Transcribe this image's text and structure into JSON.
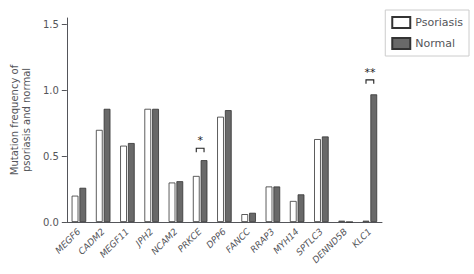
{
  "chart_data": {
    "type": "bar",
    "categories": [
      "MEGF6",
      "CADM2",
      "MEGF11",
      "JPH2",
      "NCAM2",
      "PRKCE",
      "DPP6",
      "FANCC",
      "RRAP3",
      "MYH14",
      "SPTLC3",
      "DENND5B",
      "KLC1"
    ],
    "series": [
      {
        "name": "Psoriasis",
        "color": "#ffffff",
        "values": [
          0.2,
          0.7,
          0.58,
          0.86,
          0.3,
          0.35,
          0.8,
          0.06,
          0.27,
          0.16,
          0.63,
          0.01,
          0.01
        ]
      },
      {
        "name": "Normal",
        "color": "#696969",
        "values": [
          0.26,
          0.86,
          0.6,
          0.86,
          0.31,
          0.47,
          0.85,
          0.07,
          0.27,
          0.21,
          0.65,
          0.0,
          0.97
        ]
      }
    ],
    "ylabel": "Mutation frequency of\npsoriasis and normal",
    "ylim": [
      0,
      1.55
    ],
    "yticks": [
      {
        "value": 0.0,
        "label": "0.0"
      },
      0.5,
      {
        "value": 1.0,
        "label": "1.0"
      },
      1.5
    ],
    "annotations": [
      {
        "category": "PRKCE",
        "text": "*",
        "y": 0.56
      },
      {
        "category": "KLC1",
        "text": "**",
        "y": 1.08
      }
    ],
    "legend": "upper right",
    "grid": false
  }
}
